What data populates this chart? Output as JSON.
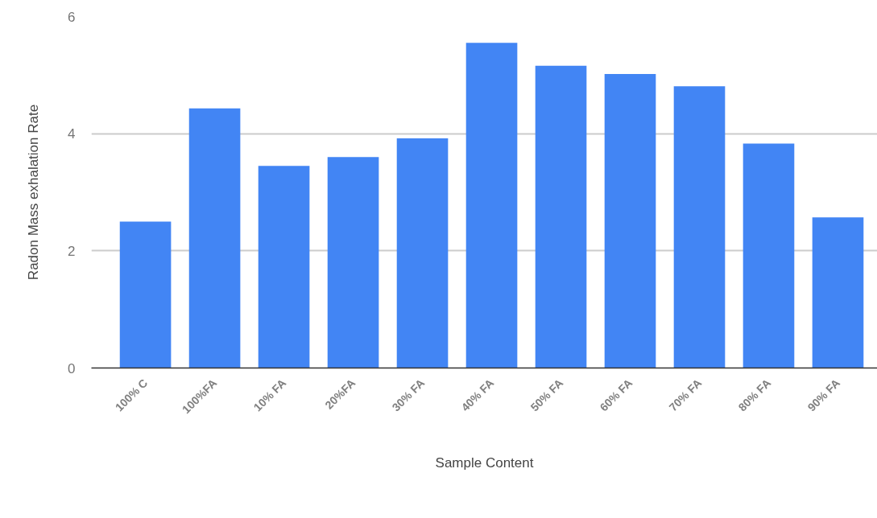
{
  "chart_data": {
    "type": "bar",
    "xlabel": "Sample Content",
    "ylabel": "Radon Mass exhalation Rate",
    "categories": [
      "100% C",
      "100%FA",
      "10% FA",
      "20%FA",
      "30% FA",
      "40% FA",
      "50% FA",
      "60% FA",
      "70% FA",
      "80% FA",
      "90% FA"
    ],
    "values": [
      2.5,
      4.43,
      3.45,
      3.6,
      3.92,
      5.55,
      5.16,
      5.02,
      4.81,
      3.83,
      2.57
    ],
    "color": "#4285f4",
    "ylim": [
      0,
      6
    ],
    "yticks": [
      0,
      2,
      4,
      6
    ],
    "grid": "y"
  }
}
